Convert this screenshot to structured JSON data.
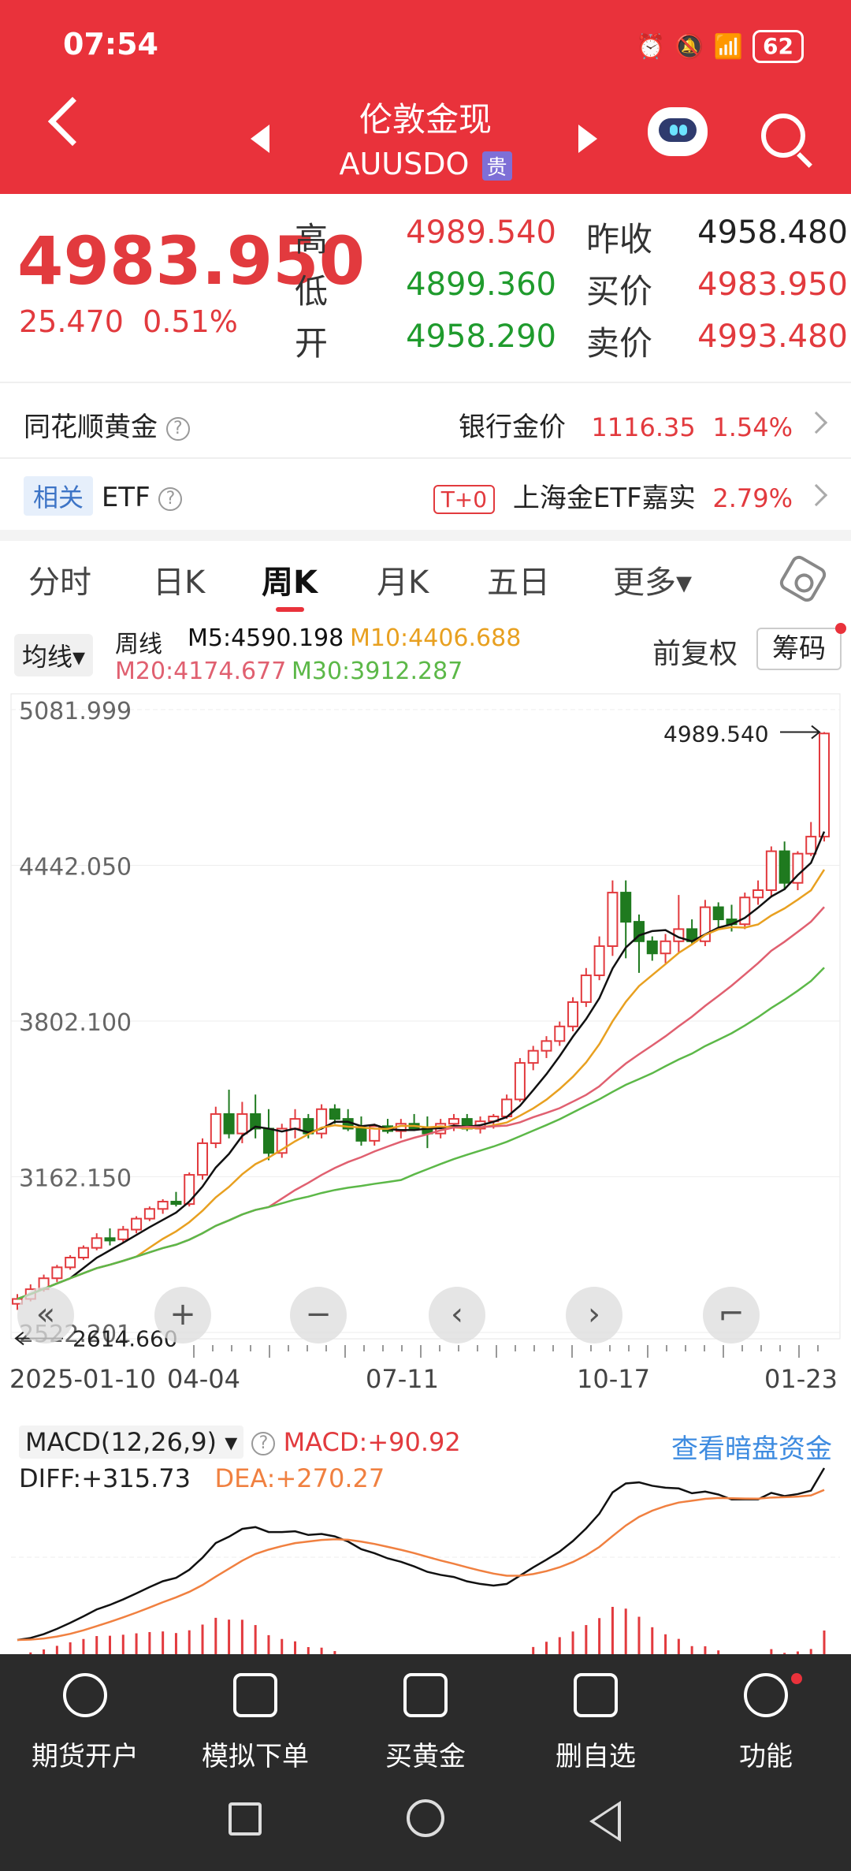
{
  "status_bar": {
    "time": "07:54",
    "battery": "62"
  },
  "header": {
    "title": "伦敦金现",
    "subtitle": "AUUSDO",
    "tag": "贵"
  },
  "quote": {
    "price": "4983.950",
    "change": "25.470",
    "change_pct": "0.51%",
    "high_label": "高",
    "high": "4989.540",
    "low_label": "低",
    "low": "4899.360",
    "open_label": "开",
    "open": "4958.290",
    "prev_close_label": "昨收",
    "prev_close": "4958.480",
    "bid_label": "买价",
    "bid": "4983.950",
    "ask_label": "卖价",
    "ask": "4993.480"
  },
  "gold_row": {
    "label": "同花顺黄金",
    "right_label": "银行金价",
    "right_value": "1116.35",
    "right_pct": "1.54%"
  },
  "etf_row": {
    "badge": "相关",
    "label": "ETF",
    "t0": "T+0",
    "right_label": "上海金ETF嘉实",
    "right_pct": "2.79%"
  },
  "tabs": [
    {
      "label": "分时"
    },
    {
      "label": "日K"
    },
    {
      "label": "周K"
    },
    {
      "label": "月K"
    },
    {
      "label": "五日"
    },
    {
      "label": "更多▾"
    }
  ],
  "ma": {
    "selector": "均线▾",
    "label": "周线",
    "m5": "M5:4590.198",
    "m10": "M10:4406.688",
    "m20": "M20:4174.677",
    "m30": "M30:3912.287",
    "fuquan": "前复权",
    "chouma": "筹码"
  },
  "colors": {
    "up": "#e23a3e",
    "down": "#1f7a1f",
    "m5": "#111111",
    "m10": "#e8a020",
    "m20": "#e06070",
    "m30": "#5cb848",
    "diff": "#111111",
    "dea": "#f08040"
  },
  "chart_data": {
    "type": "candlestick",
    "y_ticks": [
      "5081.999",
      "4442.050",
      "3802.100",
      "3162.150",
      "2522.201"
    ],
    "ylim": [
      2522.201,
      5081.999
    ],
    "x_labels": [
      "2025-01-10",
      "04-04",
      "07-11",
      "10-17",
      "01-23"
    ],
    "max_label": "4989.540",
    "min_label": "2614.660",
    "candles": [
      [
        2640,
        2680,
        2615,
        2660
      ],
      [
        2660,
        2720,
        2650,
        2700
      ],
      [
        2700,
        2760,
        2690,
        2745
      ],
      [
        2745,
        2800,
        2730,
        2790
      ],
      [
        2790,
        2840,
        2780,
        2830
      ],
      [
        2830,
        2880,
        2820,
        2870
      ],
      [
        2870,
        2930,
        2860,
        2910
      ],
      [
        2910,
        2950,
        2880,
        2900
      ],
      [
        2905,
        2960,
        2890,
        2945
      ],
      [
        2945,
        3000,
        2930,
        2990
      ],
      [
        2990,
        3040,
        2980,
        3030
      ],
      [
        3030,
        3070,
        3010,
        3060
      ],
      [
        3060,
        3100,
        3040,
        3050
      ],
      [
        3050,
        3180,
        3040,
        3170
      ],
      [
        3170,
        3320,
        3150,
        3300
      ],
      [
        3300,
        3450,
        3280,
        3420
      ],
      [
        3420,
        3520,
        3320,
        3340
      ],
      [
        3340,
        3470,
        3300,
        3420
      ],
      [
        3420,
        3500,
        3320,
        3360
      ],
      [
        3360,
        3440,
        3230,
        3260
      ],
      [
        3260,
        3380,
        3240,
        3360
      ],
      [
        3360,
        3440,
        3320,
        3400
      ],
      [
        3400,
        3420,
        3320,
        3340
      ],
      [
        3340,
        3460,
        3320,
        3440
      ],
      [
        3440,
        3460,
        3380,
        3400
      ],
      [
        3400,
        3440,
        3350,
        3360
      ],
      [
        3360,
        3410,
        3290,
        3310
      ],
      [
        3310,
        3380,
        3290,
        3370
      ],
      [
        3370,
        3400,
        3340,
        3350
      ],
      [
        3350,
        3400,
        3320,
        3380
      ],
      [
        3380,
        3420,
        3350,
        3360
      ],
      [
        3360,
        3410,
        3280,
        3340
      ],
      [
        3340,
        3400,
        3320,
        3380
      ],
      [
        3380,
        3420,
        3350,
        3400
      ],
      [
        3400,
        3420,
        3350,
        3360
      ],
      [
        3360,
        3410,
        3340,
        3390
      ],
      [
        3390,
        3420,
        3360,
        3410
      ],
      [
        3410,
        3500,
        3400,
        3480
      ],
      [
        3480,
        3650,
        3470,
        3630
      ],
      [
        3630,
        3700,
        3600,
        3680
      ],
      [
        3680,
        3740,
        3650,
        3720
      ],
      [
        3720,
        3800,
        3700,
        3780
      ],
      [
        3780,
        3900,
        3760,
        3880
      ],
      [
        3880,
        4020,
        3860,
        3990
      ],
      [
        3990,
        4150,
        3970,
        4110
      ],
      [
        4110,
        4380,
        4070,
        4330
      ],
      [
        4330,
        4380,
        4060,
        4210
      ],
      [
        4210,
        4240,
        4000,
        4130
      ],
      [
        4130,
        4150,
        4050,
        4080
      ],
      [
        4080,
        4160,
        4040,
        4130
      ],
      [
        4130,
        4320,
        4080,
        4180
      ],
      [
        4180,
        4220,
        4120,
        4130
      ],
      [
        4130,
        4300,
        4110,
        4270
      ],
      [
        4270,
        4290,
        4180,
        4220
      ],
      [
        4220,
        4280,
        4170,
        4200
      ],
      [
        4200,
        4330,
        4180,
        4310
      ],
      [
        4310,
        4380,
        4280,
        4340
      ],
      [
        4340,
        4520,
        4310,
        4500
      ],
      [
        4500,
        4540,
        4340,
        4370
      ],
      [
        4370,
        4500,
        4340,
        4490
      ],
      [
        4490,
        4620,
        4480,
        4560
      ],
      [
        4560,
        4989.54,
        4540,
        4983.95
      ]
    ],
    "nav": [
      "«",
      "+",
      "−",
      "‹",
      "›",
      "⌐"
    ]
  },
  "macd": {
    "selector": "MACD(12,26,9) ▾",
    "macd_value": "MACD:+90.92",
    "diff": "DIFF:+315.73",
    "dea": "DEA:+270.27",
    "link": "查看暗盘资金"
  },
  "bottom_nav": [
    {
      "label": "期货开户",
      "icon": "pen-circle-icon"
    },
    {
      "label": "模拟下单",
      "icon": "doc-dots-icon"
    },
    {
      "label": "买黄金",
      "icon": "doc-lines-icon"
    },
    {
      "label": "删自选",
      "icon": "minus-box-icon"
    },
    {
      "label": "功能",
      "icon": "menu-circle-icon"
    }
  ]
}
